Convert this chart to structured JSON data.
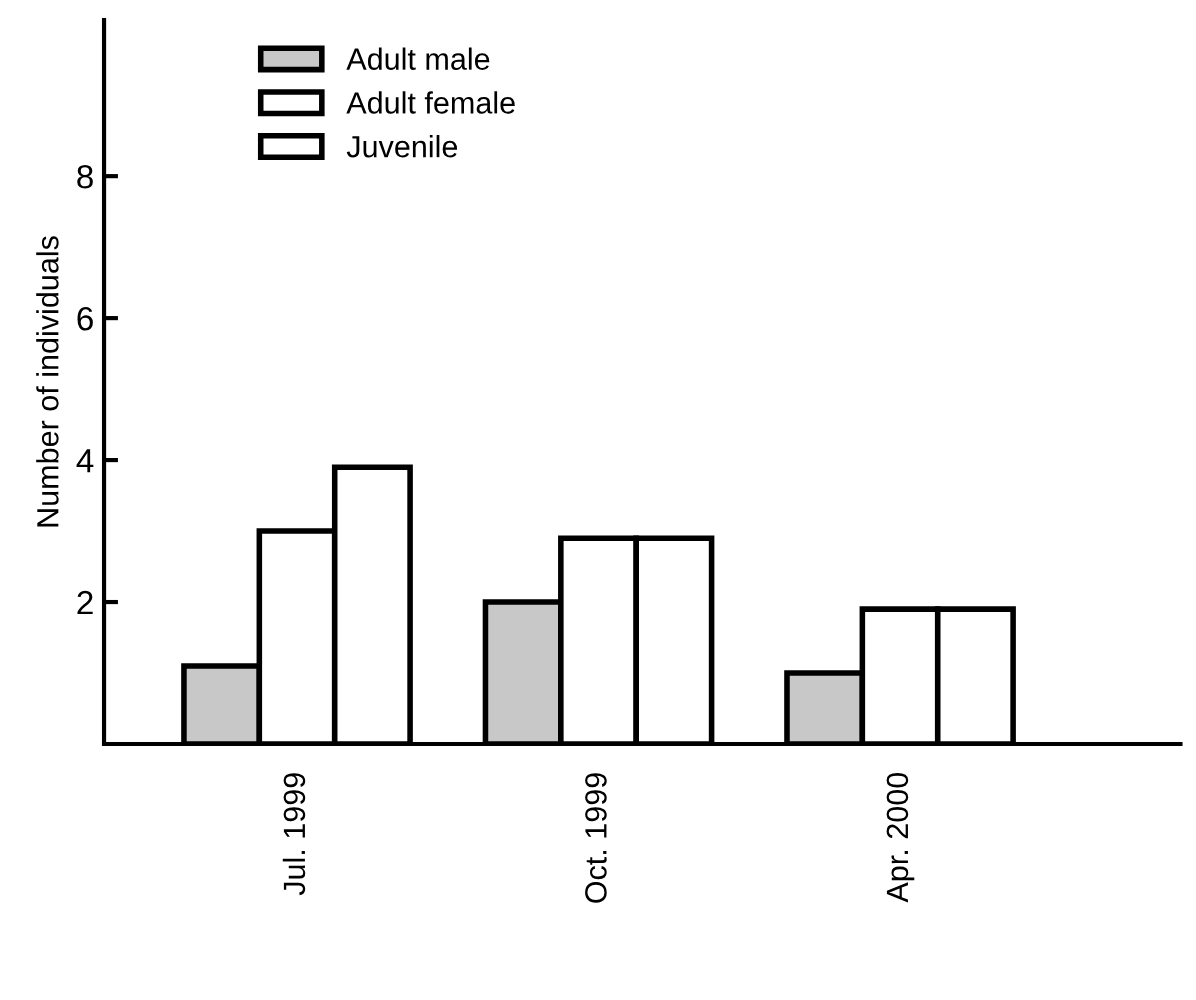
{
  "chart_data": {
    "type": "bar",
    "ylabel": "Number of individuals",
    "categories": [
      "Jul. 1999",
      "Oct. 1999",
      "Apr. 2000"
    ],
    "series": [
      {
        "name": "Adult male",
        "color": "#c8c8c8",
        "values": [
          1.1,
          2.0,
          1.0
        ]
      },
      {
        "name": "Adult female",
        "color": "#ffffff",
        "values": [
          3.0,
          2.9,
          1.9
        ]
      },
      {
        "name": "Juvenile",
        "color": "#ffffff",
        "values": [
          3.9,
          2.9,
          1.9
        ]
      }
    ],
    "ylim": [
      0,
      10.2
    ],
    "yticks": [
      2,
      4,
      6,
      8
    ],
    "grid": false,
    "legend": "top left"
  }
}
